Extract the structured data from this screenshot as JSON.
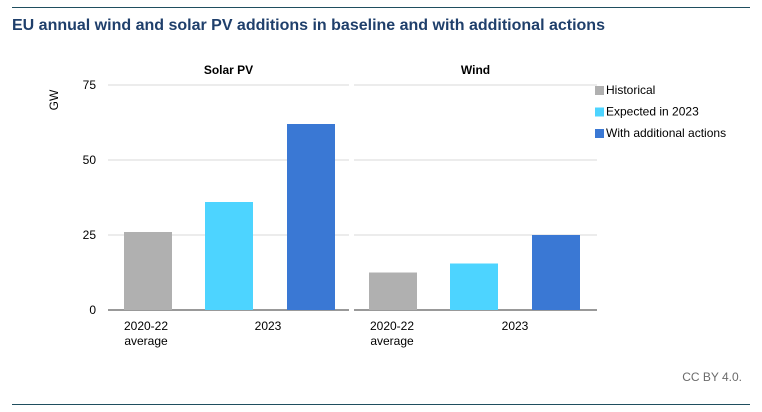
{
  "header": {
    "title": "EU annual wind and solar PV additions in baseline and with additional actions"
  },
  "footer": {
    "credit": "CC BY 4.0."
  },
  "chart_data": {
    "type": "bar",
    "ylabel": "GW",
    "ylim": [
      0,
      75
    ],
    "yticks": [
      0,
      25,
      50,
      75
    ],
    "grid": true,
    "legend_position": "right",
    "series": [
      {
        "name": "Historical",
        "color": "#b0b0b0"
      },
      {
        "name": "Expected in 2023",
        "color": "#4dd4ff"
      },
      {
        "name": "With additional actions",
        "color": "#3a78d4"
      }
    ],
    "panels": [
      {
        "title": "Solar PV",
        "category_labels": [
          "2020-22\naverage",
          "2023"
        ],
        "bars": [
          {
            "series": "Historical",
            "value": 26
          },
          {
            "series": "Expected in 2023",
            "value": 36
          },
          {
            "series": "With additional actions",
            "value": 62
          }
        ]
      },
      {
        "title": "Wind",
        "category_labels": [
          "2020-22\naverage",
          "2023"
        ],
        "bars": [
          {
            "series": "Historical",
            "value": 12.5
          },
          {
            "series": "Expected in 2023",
            "value": 15.5
          },
          {
            "series": "With additional actions",
            "value": 25
          }
        ]
      }
    ]
  }
}
